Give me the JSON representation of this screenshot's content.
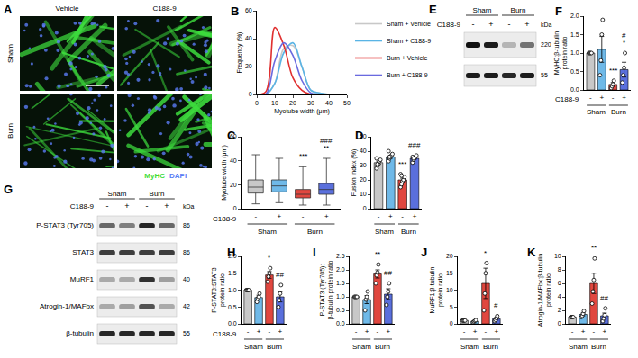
{
  "panel_a": {
    "title": "A",
    "columns": [
      "Vehicle",
      "C188-9"
    ],
    "rows": [
      "Sham",
      "Burn"
    ],
    "stains": [
      {
        "name": "MyHC",
        "color": "#3ddc3d"
      },
      {
        "name": "DAPI",
        "color": "#5a7cf5"
      }
    ]
  },
  "panel_e": {
    "title": "E",
    "groups": [
      "Sham",
      "Burn"
    ],
    "treatment_name": "C188-9",
    "treatment": [
      "-",
      "+",
      "-",
      "+"
    ],
    "unit": "kDa",
    "bands": [
      {
        "kda": 220,
        "intensity": [
          1.0,
          0.95,
          0.25,
          0.55
        ]
      },
      {
        "kda": 55,
        "intensity": [
          0.95,
          0.95,
          0.9,
          0.95
        ]
      }
    ]
  },
  "panel_g": {
    "title": "G",
    "groups": [
      "Sham",
      "Burn"
    ],
    "treatment_name": "C188-9",
    "treatment": [
      "-",
      "+",
      "-",
      "+"
    ],
    "unit": "kDa",
    "bands": [
      {
        "name": "P-STAT3 (Tyr705)",
        "kda": 86,
        "intensity": [
          0.6,
          0.5,
          0.9,
          0.6
        ]
      },
      {
        "name": "STAT3",
        "kda": 86,
        "intensity": [
          0.8,
          0.8,
          0.8,
          0.8
        ]
      },
      {
        "name": "MuRF1",
        "kda": 40,
        "intensity": [
          0.3,
          0.3,
          0.85,
          0.35
        ]
      },
      {
        "name": "Atrogin-1/MAFbx",
        "kda": 42,
        "intensity": [
          0.3,
          0.35,
          0.7,
          0.3
        ]
      },
      {
        "name": "β-tubulin",
        "kda": 55,
        "intensity": [
          0.9,
          0.9,
          0.9,
          0.9
        ]
      }
    ]
  },
  "chart_data": [
    {
      "title": "B",
      "type": "line",
      "x": [
        0,
        5,
        10,
        15,
        20,
        25,
        30,
        35,
        40
      ],
      "series": [
        {
          "name": "Sham + Vehicle",
          "color": "#c8c8c8",
          "values": [
            0,
            0,
            8,
            33,
            35,
            20,
            3,
            1,
            0
          ]
        },
        {
          "name": "Sham + C188-9",
          "color": "#5ab4e5",
          "values": [
            0,
            0,
            8,
            30,
            37,
            20,
            3,
            1,
            0
          ]
        },
        {
          "name": "Burn + Vehicle",
          "color": "#e03030",
          "values": [
            0,
            2,
            48,
            35,
            12,
            3,
            0,
            0,
            0
          ]
        },
        {
          "name": "Burn + C188-9",
          "color": "#6a6adf",
          "values": [
            0,
            0,
            24,
            37,
            28,
            10,
            1,
            0,
            0
          ]
        }
      ],
      "xlabel": "Myotube width (μm)",
      "ylabel": [
        "Frequency (%)"
      ],
      "xlim": [
        0,
        50
      ],
      "xticks": [
        0,
        10,
        20,
        30,
        40,
        50
      ],
      "ylim": [
        0,
        60
      ],
      "yticks": [
        0,
        20,
        40,
        60
      ],
      "legend": "upper right",
      "line_style": "solid"
    },
    {
      "title": "C",
      "type": "box",
      "categories": [
        "-",
        "+",
        "-",
        "+"
      ],
      "treatment_name": "C188-9",
      "groups": [
        "Sham",
        "Burn"
      ],
      "median": [
        18,
        19,
        12,
        16
      ],
      "q1": [
        13,
        14,
        9,
        12
      ],
      "q3": [
        24,
        24,
        16,
        21
      ],
      "min": [
        4,
        5,
        3,
        3
      ],
      "max": [
        45,
        42,
        35,
        42
      ],
      "colors": [
        "#c8c8c8",
        "#6fb9e8",
        "#e0473f",
        "#5a6fdc"
      ],
      "ylabel": [
        "Myotube width (μm)"
      ],
      "ylim": [
        0,
        60
      ],
      "yticks": [
        0,
        20,
        40,
        60
      ],
      "significance": [
        null,
        null,
        [
          "***"
        ],
        [
          "**",
          "###"
        ]
      ]
    },
    {
      "title": "D",
      "type": "bar",
      "categories": [
        "-",
        "+",
        "-",
        "+"
      ],
      "groups": [
        "Sham",
        "Burn"
      ],
      "values": [
        32,
        36,
        20,
        35
      ],
      "errors": [
        1,
        1,
        1.2,
        0.6
      ],
      "points": [
        [
          28,
          30,
          31,
          33,
          34,
          35,
          31
        ],
        [
          33,
          35,
          36,
          37,
          38,
          40,
          36
        ],
        [
          15,
          17,
          19,
          20,
          22,
          24,
          23
        ],
        [
          32,
          34,
          35,
          36,
          37,
          36,
          35
        ]
      ],
      "colors": [
        "#c8c8c8",
        "#6fb9e8",
        "#e0473f",
        "#5a6fdc"
      ],
      "ylabel": [
        "Fusion index (%)"
      ],
      "ylim": [
        0,
        50
      ],
      "yticks": [
        0,
        10,
        20,
        30,
        40,
        50
      ],
      "significance": [
        null,
        null,
        [
          "***"
        ],
        [
          "###"
        ]
      ]
    },
    {
      "title": "F",
      "type": "bar",
      "categories": [
        "-",
        "+",
        "-",
        "+"
      ],
      "treatment_name": "C188-9",
      "groups": [
        "Sham",
        "Burn"
      ],
      "values": [
        1.0,
        1.1,
        0.15,
        0.55
      ],
      "errors": [
        0,
        0.35,
        0.05,
        0.2
      ],
      "points": [
        [
          1,
          1,
          1,
          1
        ],
        [
          0.4,
          0.8,
          1.5,
          1.9
        ],
        [
          0.05,
          0.1,
          0.15,
          0.25
        ],
        [
          0.2,
          0.4,
          0.6,
          1.0
        ]
      ],
      "colors": [
        "#c8c8c8",
        "#6fb9e8",
        "#e0473f",
        "#5a6fdc"
      ],
      "ylabel": [
        "MyHC:β-tubulin",
        "protein ratio"
      ],
      "ylim": [
        0,
        2
      ],
      "yticks": [
        {
          "value": 0,
          "label": "0.0"
        },
        0.5,
        {
          "value": 1,
          "label": "1.0"
        },
        1.5,
        {
          "value": 2,
          "label": "2.0"
        }
      ],
      "significance": [
        null,
        null,
        [
          "***"
        ],
        [
          "*",
          "#"
        ]
      ]
    },
    {
      "title": "H",
      "type": "bar",
      "categories": [
        "-",
        "+",
        "-",
        "+"
      ],
      "treatment_name": "C188-9",
      "groups": [
        "Sham",
        "Burn"
      ],
      "values": [
        1.0,
        0.78,
        1.45,
        0.8
      ],
      "errors": [
        0,
        0.07,
        0.1,
        0.15
      ],
      "points": [
        [
          1,
          1,
          1,
          1
        ],
        [
          0.65,
          0.75,
          0.8,
          0.9
        ],
        [
          1.25,
          1.4,
          1.5,
          1.65
        ],
        [
          0.5,
          0.7,
          0.9,
          1.15
        ]
      ],
      "colors": [
        "#c8c8c8",
        "#6fb9e8",
        "#e0473f",
        "#5a6fdc"
      ],
      "ylabel": [
        "P-STAT3:STAT3",
        "protein ratio"
      ],
      "ylim": [
        0,
        2
      ],
      "yticks": [
        {
          "value": 0,
          "label": "0.0"
        },
        0.5,
        {
          "value": 1,
          "label": "1.0"
        },
        1.5,
        {
          "value": 2,
          "label": "2.0"
        }
      ],
      "significance": [
        null,
        null,
        [
          "*"
        ],
        [
          "##"
        ]
      ]
    },
    {
      "title": "I",
      "type": "bar",
      "categories": [
        "-",
        "+",
        "-",
        "+"
      ],
      "groups": [
        "Sham",
        "Burn"
      ],
      "values": [
        1.0,
        0.9,
        1.85,
        1.1
      ],
      "errors": [
        0,
        0.15,
        0.15,
        0.2
      ],
      "points": [
        [
          1,
          1,
          1,
          1
        ],
        [
          0.5,
          0.9,
          1.0,
          1.2
        ],
        [
          1.5,
          1.8,
          1.9,
          2.2
        ],
        [
          0.7,
          1.0,
          1.2,
          1.5
        ]
      ],
      "colors": [
        "#c8c8c8",
        "#6fb9e8",
        "#e0473f",
        "#5a6fdc"
      ],
      "ylabel": [
        "P-STAT3 (Tyr705):",
        "β-tubulin protein ratio"
      ],
      "ylim": [
        0,
        2.5
      ],
      "yticks": [
        {
          "value": 0,
          "label": "0.0"
        },
        0.5,
        {
          "value": 1,
          "label": "1.0"
        },
        1.5,
        {
          "value": 2,
          "label": "2.0"
        },
        2.5
      ],
      "significance": [
        null,
        null,
        [
          "**"
        ],
        [
          "##"
        ]
      ]
    },
    {
      "title": "J",
      "type": "bar",
      "categories": [
        "-",
        "+",
        "-",
        "+"
      ],
      "groups": [
        "Sham",
        "Burn"
      ],
      "values": [
        1,
        0.8,
        12,
        1.5
      ],
      "errors": [
        0,
        0.15,
        4.5,
        0.4
      ],
      "points": [
        [
          1,
          1,
          1,
          1
        ],
        [
          0.5,
          0.7,
          0.9,
          1.1
        ],
        [
          4,
          9,
          15,
          18
        ],
        [
          0.8,
          1.2,
          1.7,
          2.3
        ]
      ],
      "colors": [
        "#c8c8c8",
        "#6fb9e8",
        "#e0473f",
        "#5a6fdc"
      ],
      "ylabel": [
        "MuRF1:β-tubulin",
        "protein ratio"
      ],
      "ylim": [
        0,
        20
      ],
      "yticks": [
        0,
        5,
        10,
        15,
        20
      ],
      "significance": [
        null,
        null,
        [
          "*"
        ],
        [
          "#"
        ]
      ]
    },
    {
      "title": "K",
      "type": "bar",
      "categories": [
        "-",
        "+",
        "-",
        "+"
      ],
      "groups": [
        "Sham",
        "Burn"
      ],
      "values": [
        1,
        1.4,
        6,
        1.2
      ],
      "errors": [
        0,
        0.2,
        1.5,
        0.4
      ],
      "points": [
        [
          1,
          1,
          1,
          1
        ],
        [
          1.0,
          1.2,
          1.5,
          1.9
        ],
        [
          3,
          4.8,
          6.5,
          9.7
        ],
        [
          0.4,
          0.8,
          1.3,
          2.3
        ]
      ],
      "colors": [
        "#c8c8c8",
        "#6fb9e8",
        "#e0473f",
        "#5a6fdc"
      ],
      "ylabel": [
        "Atrogin-1/MAFbx:β-tubulin",
        "protein ratio"
      ],
      "ylim": [
        0,
        10
      ],
      "yticks": [
        0,
        2,
        4,
        6,
        8,
        10
      ],
      "significance": [
        null,
        null,
        [
          "**"
        ],
        [
          "##"
        ]
      ]
    }
  ]
}
